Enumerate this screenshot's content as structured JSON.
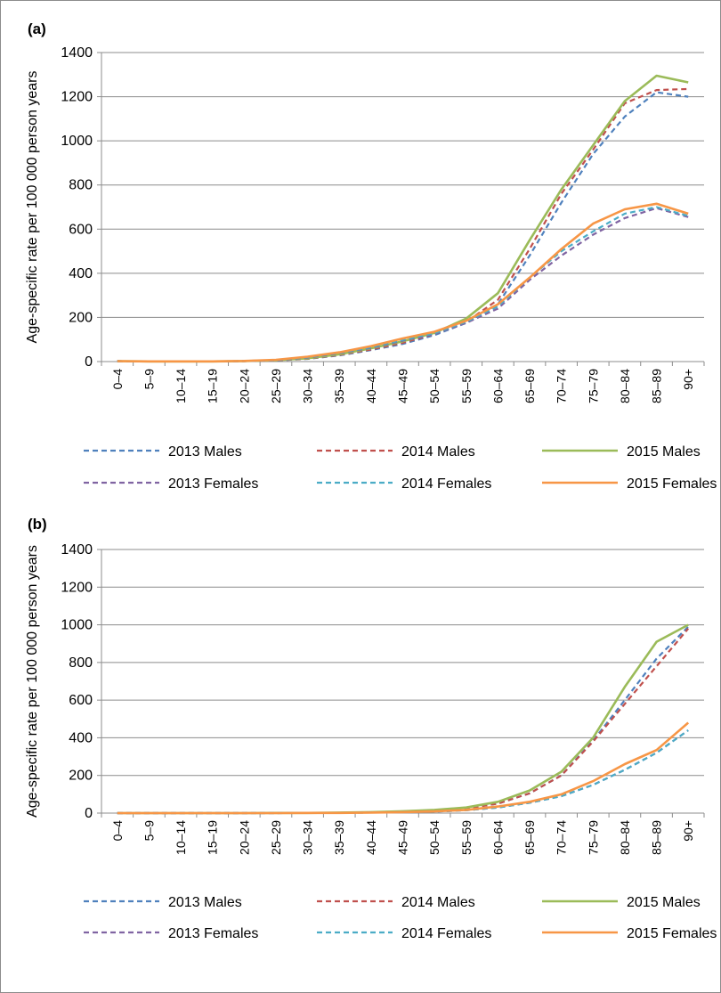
{
  "chart_data": [
    {
      "type": "line",
      "panel_label": "(a)",
      "ylabel": "Age-specific rate per 100 000 person years",
      "ylim": [
        0,
        1400
      ],
      "yticks": [
        "0",
        "200",
        "400",
        "600",
        "800",
        "1000",
        "1200",
        "1400"
      ],
      "grid": true,
      "legend_position": "bottom",
      "categories": [
        "0–4",
        "5–9",
        "10–14",
        "15–19",
        "20–24",
        "25–29",
        "30–34",
        "35–39",
        "40–44",
        "45–49",
        "50–54",
        "55–59",
        "60–64",
        "65–69",
        "70–74",
        "75–79",
        "80–84",
        "85–89",
        "90+"
      ],
      "series": [
        {
          "name": "2013 Males",
          "color": "#4F81BD",
          "dash": true,
          "values": [
            2,
            1,
            1,
            1,
            2,
            5,
            12,
            28,
            52,
            80,
            120,
            175,
            260,
            480,
            720,
            940,
            1110,
            1220,
            1200
          ]
        },
        {
          "name": "2014 Males",
          "color": "#C0504D",
          "dash": true,
          "values": [
            2,
            1,
            1,
            1,
            2,
            5,
            13,
            30,
            55,
            85,
            125,
            180,
            280,
            510,
            760,
            960,
            1170,
            1230,
            1235
          ]
        },
        {
          "name": "2015 Males",
          "color": "#9BBB59",
          "dash": false,
          "values": [
            2,
            1,
            1,
            1,
            2,
            6,
            15,
            33,
            60,
            92,
            130,
            195,
            310,
            550,
            780,
            980,
            1180,
            1295,
            1265
          ]
        },
        {
          "name": "2013 Females",
          "color": "#8064A2",
          "dash": true,
          "values": [
            2,
            1,
            1,
            1,
            2,
            6,
            18,
            38,
            62,
            95,
            125,
            175,
            240,
            370,
            480,
            575,
            650,
            695,
            655
          ]
        },
        {
          "name": "2014 Females",
          "color": "#4BACC6",
          "dash": true,
          "values": [
            2,
            1,
            1,
            1,
            3,
            7,
            20,
            40,
            65,
            98,
            128,
            180,
            250,
            380,
            500,
            590,
            670,
            700,
            660
          ]
        },
        {
          "name": "2015 Females",
          "color": "#F79646",
          "dash": false,
          "values": [
            2,
            1,
            1,
            1,
            3,
            8,
            22,
            42,
            70,
            105,
            135,
            185,
            260,
            380,
            510,
            625,
            690,
            715,
            670
          ]
        }
      ]
    },
    {
      "type": "line",
      "panel_label": "(b)",
      "ylabel": "Age-specific rate per 100 000 person years",
      "ylim": [
        0,
        1400
      ],
      "yticks": [
        "0",
        "200",
        "400",
        "600",
        "800",
        "1000",
        "1200",
        "1400"
      ],
      "grid": true,
      "legend_position": "bottom",
      "categories": [
        "0–4",
        "5–9",
        "10–14",
        "15–19",
        "20–24",
        "25–29",
        "30–34",
        "35–39",
        "40–44",
        "45–49",
        "50–54",
        "55–59",
        "60–64",
        "65–69",
        "70–74",
        "75–79",
        "80–84",
        "85–89",
        "90+"
      ],
      "series": [
        {
          "name": "2013 Males",
          "color": "#4F81BD",
          "dash": true,
          "values": [
            0,
            0,
            0,
            0,
            0,
            1,
            1,
            2,
            4,
            7,
            12,
            25,
            50,
            105,
            200,
            385,
            600,
            820,
            990
          ]
        },
        {
          "name": "2014 Males",
          "color": "#C0504D",
          "dash": true,
          "values": [
            0,
            0,
            0,
            0,
            0,
            1,
            1,
            2,
            4,
            7,
            12,
            25,
            50,
            105,
            200,
            380,
            580,
            780,
            980
          ]
        },
        {
          "name": "2015 Males",
          "color": "#9BBB59",
          "dash": false,
          "values": [
            0,
            0,
            0,
            0,
            0,
            1,
            1,
            3,
            5,
            10,
            17,
            30,
            60,
            120,
            220,
            400,
            670,
            910,
            1000
          ]
        },
        {
          "name": "2013 Females",
          "color": "#8064A2",
          "dash": true,
          "values": [
            0,
            0,
            0,
            0,
            0,
            0,
            1,
            1,
            3,
            5,
            8,
            15,
            30,
            55,
            90,
            150,
            230,
            320,
            440
          ]
        },
        {
          "name": "2014 Females",
          "color": "#4BACC6",
          "dash": true,
          "values": [
            0,
            0,
            0,
            0,
            0,
            0,
            1,
            1,
            3,
            5,
            8,
            15,
            30,
            55,
            90,
            150,
            230,
            320,
            440
          ]
        },
        {
          "name": "2015 Females",
          "color": "#F79646",
          "dash": false,
          "values": [
            0,
            0,
            0,
            0,
            0,
            0,
            1,
            1,
            3,
            5,
            9,
            17,
            35,
            60,
            100,
            170,
            260,
            335,
            480
          ]
        }
      ]
    }
  ]
}
